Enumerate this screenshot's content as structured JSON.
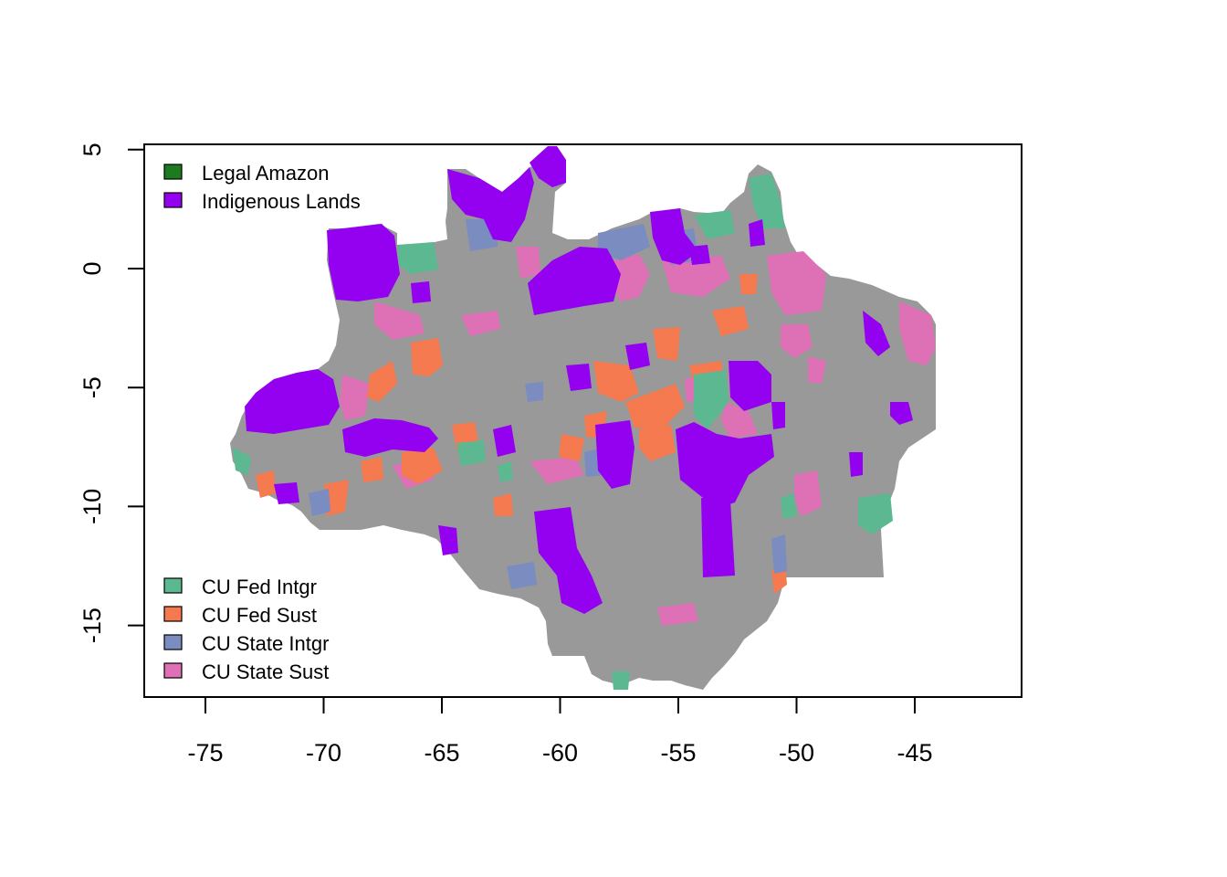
{
  "map": {
    "axes": {
      "x": {
        "range": [
          -78,
          -41
        ],
        "ticks": [
          {
            "value": -75,
            "label": "-75"
          },
          {
            "value": -70,
            "label": "-70"
          },
          {
            "value": -65,
            "label": "-65"
          },
          {
            "value": -60,
            "label": "-60"
          },
          {
            "value": -55,
            "label": "-55"
          },
          {
            "value": -50,
            "label": "-50"
          },
          {
            "value": -45,
            "label": "-45"
          }
        ]
      },
      "y": {
        "range": [
          -18,
          5.2
        ],
        "ticks": [
          {
            "value": 5,
            "label": "5"
          },
          {
            "value": 0,
            "label": "0"
          },
          {
            "value": -5,
            "label": "-5"
          },
          {
            "value": -10,
            "label": "-10"
          },
          {
            "value": -15,
            "label": "-15"
          }
        ]
      }
    },
    "legend_top": {
      "placement": "top-left",
      "items": [
        {
          "label": "Legal Amazon",
          "color": "#1e7a1e"
        },
        {
          "label": "Indigenous Lands",
          "color": "#9400f0"
        }
      ]
    },
    "legend_bottom": {
      "placement": "bottom-left",
      "items": [
        {
          "label": "CU Fed Intgr",
          "color": "#5bb890"
        },
        {
          "label": "CU Fed Sust",
          "color": "#f57a50"
        },
        {
          "label": "CU State Intgr",
          "color": "#7a8cc0"
        },
        {
          "label": "CU State Sust",
          "color": "#de70b6"
        }
      ]
    },
    "colors": {
      "background_region": "#999999",
      "indigenous": "#9400f0",
      "cu_fed_intgr": "#5bb890",
      "cu_fed_sust": "#f57a50",
      "cu_state_intgr": "#7a8cc0",
      "cu_state_sust": "#de70b6"
    }
  }
}
